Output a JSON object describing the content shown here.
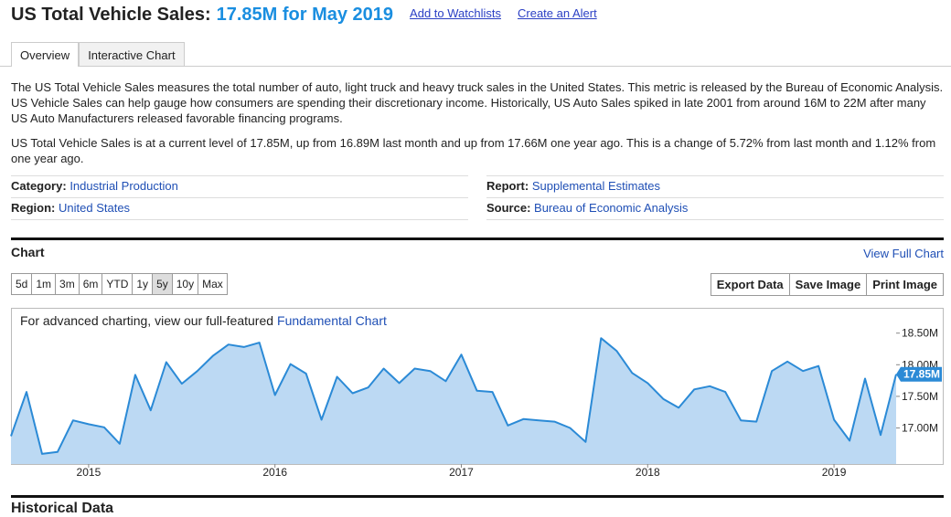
{
  "header": {
    "title": "US Total Vehicle Sales:",
    "headline": "17.85M for May 2019",
    "links": [
      "Add to Watchlists",
      "Create an Alert"
    ]
  },
  "tabs": {
    "items": [
      "Overview",
      "Interactive Chart"
    ],
    "active": "Overview"
  },
  "description": [
    "The US Total Vehicle Sales measures the total number of auto, light truck and heavy truck sales in the United States. This metric is released by the Bureau of Economic Analysis. US Vehicle Sales can help gauge how consumers are spending their discretionary income. Historically, US Auto Sales spiked in late 2001 from around 16M to 22M after many US Auto Manufacturers released favorable financing programs.",
    "US Total Vehicle Sales is at a current level of 17.85M, up from 16.89M last month and up from 17.66M one year ago. This is a change of 5.72% from last month and 1.12% from one year ago."
  ],
  "meta": [
    {
      "label": "Category:",
      "value": "Industrial Production"
    },
    {
      "label": "Report:",
      "value": "Supplemental Estimates"
    },
    {
      "label": "Region:",
      "value": "United States"
    },
    {
      "label": "Source:",
      "value": "Bureau of Economic Analysis"
    }
  ],
  "chart_section": {
    "title": "Chart",
    "view_full": "View Full Chart",
    "ranges": [
      "5d",
      "1m",
      "3m",
      "6m",
      "YTD",
      "1y",
      "5y",
      "10y",
      "Max"
    ],
    "active_range": "5y",
    "actions": [
      "Export Data",
      "Save Image",
      "Print Image"
    ],
    "notice": "For advanced charting, view our full-featured",
    "notice_link": "Fundamental Chart"
  },
  "chart_data": {
    "type": "area",
    "categories": [
      null,
      null,
      null,
      null,
      null,
      "2015",
      null,
      null,
      null,
      null,
      null,
      null,
      null,
      null,
      null,
      null,
      null,
      "2016",
      null,
      null,
      null,
      null,
      null,
      null,
      null,
      null,
      null,
      null,
      null,
      "2017",
      null,
      null,
      null,
      null,
      null,
      null,
      null,
      null,
      null,
      null,
      null,
      "2018",
      null,
      null,
      null,
      null,
      null,
      null,
      null,
      null,
      null,
      null,
      null,
      "2019",
      null,
      null,
      null,
      null
    ],
    "values": [
      16.87,
      17.57,
      16.59,
      16.62,
      17.12,
      17.06,
      17.01,
      16.75,
      17.84,
      17.28,
      18.04,
      17.7,
      17.9,
      18.14,
      18.32,
      18.28,
      18.35,
      17.52,
      18.01,
      17.86,
      17.13,
      17.81,
      17.55,
      17.64,
      17.94,
      17.71,
      17.94,
      17.9,
      17.74,
      18.16,
      17.59,
      17.57,
      17.04,
      17.14,
      17.12,
      17.1,
      17.0,
      16.78,
      18.42,
      18.22,
      17.87,
      17.71,
      17.46,
      17.32,
      17.61,
      17.66,
      17.57,
      17.12,
      17.1,
      17.9,
      18.05,
      17.9,
      17.98,
      17.13,
      16.8,
      17.78,
      16.89,
      17.85
    ],
    "value_labels": [
      null,
      null,
      null,
      null,
      null,
      null,
      null,
      null,
      null,
      null,
      null,
      null,
      null,
      null,
      null,
      null,
      null,
      null,
      null,
      null,
      null,
      null,
      null,
      null,
      null,
      null,
      null,
      null,
      null,
      null,
      null,
      null,
      null,
      null,
      null,
      null,
      null,
      null,
      null,
      null,
      null,
      null,
      null,
      null,
      null,
      null,
      null,
      null,
      null,
      null,
      null,
      null,
      null,
      null,
      null,
      null,
      null,
      "17.85M"
    ],
    "color": "#2b8ad6",
    "fill": "#bcd9f3",
    "ylim": [
      16.43,
      18.9
    ],
    "yticks": [
      {
        "value": 17,
        "label": "17.00M"
      },
      {
        "value": 17.5,
        "label": "17.50M"
      },
      {
        "value": 18,
        "label": "18.00M"
      },
      {
        "value": 18.5,
        "label": "18.50M"
      }
    ]
  },
  "footer_heading": "Historical Data"
}
